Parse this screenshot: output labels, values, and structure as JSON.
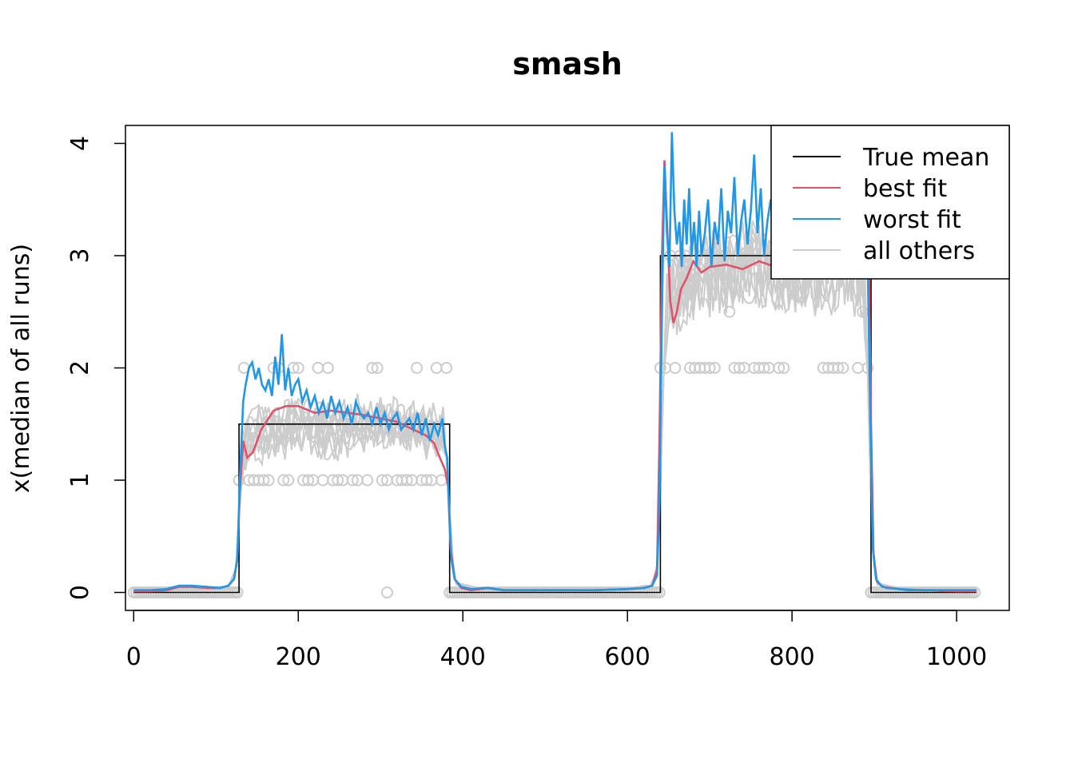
{
  "chart_data": {
    "type": "line",
    "title": "smash",
    "xlabel": "",
    "ylabel": "x(median of all runs)",
    "xlim": [
      -10,
      1064
    ],
    "ylim": [
      -0.16,
      4.16
    ],
    "x_ticks": [
      0,
      200,
      400,
      600,
      800,
      1000
    ],
    "x_tick_labels": [
      "0",
      "200",
      "400",
      "600",
      "800",
      "1000"
    ],
    "y_ticks": [
      0,
      1,
      2,
      3,
      4
    ],
    "y_tick_labels": [
      "0",
      "1",
      "2",
      "3",
      "4"
    ],
    "grid": false,
    "legend_position": "top-right",
    "legend": [
      {
        "label": "True mean",
        "color": "#000000"
      },
      {
        "label": "best fit",
        "color": "#DF536B"
      },
      {
        "label": "worst fit",
        "color": "#2297E6"
      },
      {
        "label": "all others",
        "color": "#CCCCCC"
      }
    ],
    "true_mean": {
      "x": [
        0,
        128,
        128,
        384,
        384,
        640,
        640,
        896,
        896,
        1024
      ],
      "y": [
        0,
        0,
        1.5,
        1.5,
        0,
        0,
        3,
        3,
        0,
        0
      ]
    },
    "observed_values": {
      "color": "#CCCCCC",
      "segments": [
        {
          "from": 0,
          "to": 128,
          "levels": [
            0
          ]
        },
        {
          "from": 128,
          "to": 384,
          "levels": [
            1,
            2
          ],
          "extra": [
            1.5
          ]
        },
        {
          "from": 384,
          "to": 640,
          "levels": [
            0
          ]
        },
        {
          "from": 640,
          "to": 896,
          "levels": [
            2,
            3
          ],
          "extra": [
            2.5,
            4
          ]
        },
        {
          "from": 896,
          "to": 1024,
          "levels": [
            0
          ]
        }
      ],
      "outliers": [
        {
          "x": 308,
          "y": 0
        }
      ]
    },
    "series": [
      {
        "name": "best fit",
        "color": "#DF536B",
        "x": [
          0,
          20,
          40,
          55,
          70,
          90,
          105,
          115,
          122,
          126,
          129,
          133,
          138,
          145,
          155,
          170,
          185,
          200,
          220,
          240,
          260,
          280,
          300,
          320,
          340,
          355,
          365,
          372,
          378,
          382,
          385,
          390,
          398,
          410,
          430,
          450,
          480,
          520,
          560,
          600,
          620,
          630,
          636,
          639,
          642,
          645,
          648,
          652,
          656,
          660,
          665,
          672,
          680,
          690,
          700,
          720,
          740,
          760,
          780,
          800,
          820,
          840,
          860,
          875,
          885,
          890,
          893,
          896,
          899,
          903,
          910,
          920,
          940,
          970,
          1000,
          1024
        ],
        "y": [
          0.01,
          0.01,
          0.02,
          0.05,
          0.05,
          0.04,
          0.04,
          0.06,
          0.12,
          0.3,
          0.9,
          1.35,
          1.2,
          1.25,
          1.45,
          1.62,
          1.66,
          1.66,
          1.6,
          1.62,
          1.6,
          1.58,
          1.55,
          1.52,
          1.45,
          1.4,
          1.33,
          1.2,
          1.1,
          0.95,
          0.4,
          0.12,
          0.04,
          0.02,
          0.04,
          0.02,
          0.02,
          0.02,
          0.02,
          0.03,
          0.04,
          0.06,
          0.2,
          1.4,
          3.0,
          3.85,
          3.3,
          2.6,
          2.4,
          2.5,
          2.7,
          2.8,
          2.95,
          2.85,
          2.9,
          2.92,
          2.88,
          2.95,
          2.9,
          2.93,
          2.95,
          2.92,
          2.95,
          3.1,
          3.3,
          3.45,
          3.2,
          1.5,
          0.35,
          0.1,
          0.05,
          0.04,
          0.02,
          0.02,
          0.01,
          0.01
        ]
      },
      {
        "name": "worst fit",
        "color": "#2297E6",
        "x": [
          0,
          20,
          40,
          55,
          70,
          90,
          105,
          115,
          122,
          126,
          129,
          133,
          136,
          140,
          144,
          148,
          152,
          156,
          160,
          164,
          168,
          172,
          176,
          180,
          184,
          188,
          192,
          196,
          200,
          205,
          210,
          215,
          220,
          225,
          230,
          235,
          240,
          245,
          250,
          255,
          260,
          265,
          270,
          275,
          280,
          285,
          290,
          295,
          300,
          305,
          310,
          315,
          320,
          325,
          330,
          335,
          340,
          345,
          350,
          355,
          360,
          365,
          370,
          375,
          378,
          381,
          383,
          386,
          390,
          398,
          410,
          430,
          450,
          480,
          520,
          560,
          600,
          620,
          630,
          636,
          639,
          642,
          645,
          648,
          651,
          654,
          657,
          660,
          663,
          666,
          669,
          672,
          675,
          678,
          681,
          684,
          687,
          690,
          694,
          698,
          702,
          706,
          710,
          714,
          718,
          722,
          726,
          730,
          734,
          738,
          742,
          746,
          750,
          754,
          758,
          762,
          766,
          770,
          774,
          778,
          782,
          786,
          790,
          794,
          798,
          802,
          806,
          810,
          814,
          818,
          822,
          826,
          830,
          834,
          838,
          842,
          846,
          850,
          854,
          858,
          862,
          866,
          870,
          874,
          878,
          882,
          886,
          889,
          892,
          895,
          898,
          902,
          908,
          915,
          930,
          960,
          1000,
          1024
        ],
        "y": [
          0.02,
          0.02,
          0.03,
          0.06,
          0.06,
          0.05,
          0.04,
          0.06,
          0.12,
          0.3,
          1.0,
          1.7,
          1.85,
          2.0,
          2.05,
          1.9,
          2.0,
          1.85,
          1.8,
          1.9,
          1.75,
          2.1,
          1.85,
          2.3,
          1.8,
          2.0,
          1.75,
          1.85,
          1.9,
          1.7,
          1.8,
          1.65,
          1.75,
          1.6,
          1.7,
          1.55,
          1.75,
          1.6,
          1.7,
          1.55,
          1.65,
          1.5,
          1.7,
          1.6,
          1.55,
          1.6,
          1.5,
          1.65,
          1.5,
          1.6,
          1.45,
          1.55,
          1.6,
          1.45,
          1.5,
          1.55,
          1.45,
          1.6,
          1.4,
          1.55,
          1.35,
          1.5,
          1.4,
          1.55,
          1.3,
          1.2,
          0.8,
          0.3,
          0.12,
          0.05,
          0.03,
          0.04,
          0.02,
          0.02,
          0.02,
          0.02,
          0.03,
          0.04,
          0.06,
          0.15,
          0.8,
          2.5,
          3.8,
          3.2,
          2.9,
          4.1,
          3.4,
          3.1,
          3.3,
          2.9,
          3.5,
          3.1,
          3.6,
          3.0,
          3.3,
          2.9,
          3.4,
          3.0,
          3.2,
          3.5,
          2.9,
          3.3,
          3.1,
          3.6,
          2.95,
          3.4,
          3.2,
          3.7,
          3.0,
          3.3,
          3.5,
          3.1,
          3.4,
          3.9,
          3.2,
          3.6,
          3.0,
          3.3,
          3.5,
          3.1,
          3.8,
          3.2,
          3.4,
          3.0,
          3.6,
          3.3,
          3.1,
          3.5,
          3.2,
          3.7,
          3.0,
          3.3,
          3.4,
          3.1,
          3.5,
          3.2,
          3.6,
          3.0,
          3.3,
          3.1,
          3.4,
          3.2,
          3.5,
          3.0,
          3.3,
          3.2,
          3.1,
          3.0,
          2.9,
          1.6,
          0.4,
          0.12,
          0.06,
          0.04,
          0.03,
          0.02,
          0.02,
          0.02
        ]
      },
      {
        "name": "all others",
        "color": "#CCCCCC",
        "x": [
          0,
          40,
          80,
          115,
          124,
          128,
          132,
          140,
          160,
          200,
          240,
          280,
          320,
          360,
          376,
          382,
          386,
          392,
          420,
          480,
          540,
          600,
          630,
          638,
          642,
          648,
          660,
          700,
          740,
          780,
          820,
          860,
          886,
          893,
          897,
          903,
          930,
          1000,
          1024
        ],
        "y": [
          0.01,
          0.03,
          0.03,
          0.05,
          0.2,
          0.7,
          1.25,
          1.4,
          1.45,
          1.5,
          1.45,
          1.5,
          1.5,
          1.45,
          1.45,
          1.1,
          0.35,
          0.08,
          0.03,
          0.02,
          0.03,
          0.03,
          0.06,
          0.3,
          1.6,
          2.6,
          2.7,
          2.85,
          2.9,
          2.9,
          2.85,
          2.9,
          2.85,
          1.8,
          0.4,
          0.08,
          0.03,
          0.02,
          0.02
        ]
      }
    ]
  }
}
